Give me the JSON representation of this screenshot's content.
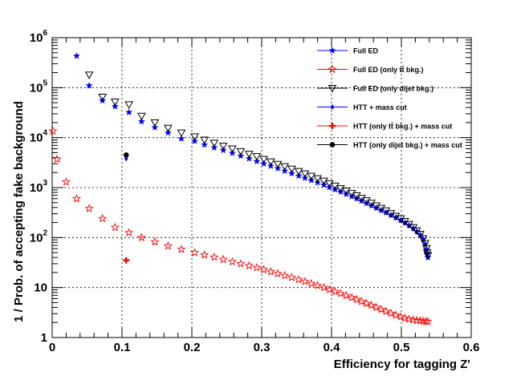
{
  "chart_data": {
    "type": "scatter",
    "xlabel": "Efficiency for tagging Z'",
    "ylabel": "1 / Prob. of accepting fake background",
    "xlim": [
      0,
      0.6
    ],
    "ylim": [
      1,
      1000000
    ],
    "yscale": "log",
    "grid": true,
    "legend_position": "top-right",
    "x_ticks": [
      "0",
      "0.1",
      "0.2",
      "0.3",
      "0.4",
      "0.5",
      "0.6"
    ],
    "y_ticks": [
      {
        "value": 1,
        "base": "1",
        "exp": ""
      },
      {
        "value": 10,
        "base": "10",
        "exp": ""
      },
      {
        "value": 100,
        "base": "10",
        "exp": "2"
      },
      {
        "value": 1000,
        "base": "10",
        "exp": "3"
      },
      {
        "value": 10000,
        "base": "10",
        "exp": "4"
      },
      {
        "value": 100000,
        "base": "10",
        "exp": "5"
      },
      {
        "value": 1000000,
        "base": "10",
        "exp": "6"
      }
    ],
    "series": [
      {
        "name": "Full ED",
        "label_parts": [
          "Full ED"
        ],
        "marker": "star-filled",
        "color": "#0000ff",
        "points": [
          [
            0.035,
            430000
          ],
          [
            0.053,
            110000
          ],
          [
            0.072,
            55000
          ],
          [
            0.09,
            42000
          ],
          [
            0.11,
            32000
          ],
          [
            0.128,
            21000
          ],
          [
            0.147,
            16000
          ],
          [
            0.166,
            12500
          ],
          [
            0.185,
            9500
          ],
          [
            0.204,
            8500
          ],
          [
            0.218,
            7200
          ],
          [
            0.232,
            6300
          ],
          [
            0.245,
            5600
          ],
          [
            0.258,
            4900
          ],
          [
            0.27,
            4300
          ],
          [
            0.282,
            3800
          ],
          [
            0.293,
            3350
          ],
          [
            0.303,
            3000
          ],
          [
            0.313,
            2700
          ],
          [
            0.323,
            2420
          ],
          [
            0.333,
            2150
          ],
          [
            0.343,
            1920
          ],
          [
            0.353,
            1720
          ],
          [
            0.362,
            1550
          ],
          [
            0.371,
            1400
          ],
          [
            0.38,
            1260
          ],
          [
            0.389,
            1130
          ],
          [
            0.397,
            1010
          ],
          [
            0.405,
            910
          ],
          [
            0.413,
            820
          ],
          [
            0.421,
            740
          ],
          [
            0.429,
            665
          ],
          [
            0.436,
            600
          ],
          [
            0.443,
            540
          ],
          [
            0.45,
            485
          ],
          [
            0.457,
            435
          ],
          [
            0.464,
            390
          ],
          [
            0.471,
            350
          ],
          [
            0.478,
            315
          ],
          [
            0.485,
            280
          ],
          [
            0.492,
            250
          ],
          [
            0.499,
            222
          ],
          [
            0.505,
            198
          ],
          [
            0.511,
            175
          ],
          [
            0.517,
            153
          ],
          [
            0.522,
            133
          ],
          [
            0.527,
            113
          ],
          [
            0.531,
            93
          ],
          [
            0.534,
            74
          ],
          [
            0.536,
            58
          ],
          [
            0.537,
            46
          ],
          [
            0.538,
            40
          ]
        ]
      },
      {
        "name": "Full ED (only tt̄ bkg.)",
        "label_parts": [
          "Full ED (only t",
          "t̄",
          " bkg.)"
        ],
        "marker": "star-open",
        "color": "#ff0000",
        "points": [
          [
            0.001,
            13500
          ],
          [
            0.007,
            3700
          ],
          [
            0.02,
            1300
          ],
          [
            0.035,
            600
          ],
          [
            0.053,
            380
          ],
          [
            0.072,
            240
          ],
          [
            0.09,
            160
          ],
          [
            0.11,
            125
          ],
          [
            0.128,
            100
          ],
          [
            0.147,
            82
          ],
          [
            0.166,
            68
          ],
          [
            0.185,
            58
          ],
          [
            0.204,
            50
          ],
          [
            0.218,
            45
          ],
          [
            0.232,
            40.5
          ],
          [
            0.245,
            36.5
          ],
          [
            0.258,
            33
          ],
          [
            0.27,
            30
          ],
          [
            0.282,
            27.3
          ],
          [
            0.293,
            25
          ],
          [
            0.303,
            22.8
          ],
          [
            0.313,
            20.8
          ],
          [
            0.323,
            19
          ],
          [
            0.333,
            17.4
          ],
          [
            0.343,
            15.9
          ],
          [
            0.353,
            14.5
          ],
          [
            0.362,
            13.2
          ],
          [
            0.371,
            12
          ],
          [
            0.38,
            11
          ],
          [
            0.389,
            10
          ],
          [
            0.397,
            9.1
          ],
          [
            0.405,
            8.3
          ],
          [
            0.413,
            7.6
          ],
          [
            0.421,
            6.9
          ],
          [
            0.429,
            6.3
          ],
          [
            0.436,
            5.75
          ],
          [
            0.443,
            5.25
          ],
          [
            0.45,
            4.8
          ],
          [
            0.457,
            4.4
          ],
          [
            0.464,
            4
          ],
          [
            0.471,
            3.65
          ],
          [
            0.478,
            3.33
          ],
          [
            0.485,
            3.05
          ],
          [
            0.492,
            2.8
          ],
          [
            0.499,
            2.6
          ],
          [
            0.505,
            2.45
          ],
          [
            0.511,
            2.33
          ],
          [
            0.517,
            2.25
          ],
          [
            0.522,
            2.2
          ],
          [
            0.527,
            2.16
          ],
          [
            0.531,
            2.13
          ],
          [
            0.535,
            2.1
          ],
          [
            0.538,
            2.08
          ]
        ]
      },
      {
        "name": "Full ED (only dijet bkg.)",
        "label_parts": [
          "Full ED (only dijet bkg.)"
        ],
        "marker": "triangle-down-open",
        "color": "#000000",
        "points": [
          [
            0.053,
            180000
          ],
          [
            0.072,
            65000
          ],
          [
            0.09,
            52000
          ],
          [
            0.11,
            46000
          ],
          [
            0.128,
            27000
          ],
          [
            0.147,
            20000
          ],
          [
            0.166,
            15500
          ],
          [
            0.185,
            12500
          ],
          [
            0.204,
            10500
          ],
          [
            0.218,
            9000
          ],
          [
            0.232,
            7800
          ],
          [
            0.245,
            6800
          ],
          [
            0.258,
            6000
          ],
          [
            0.27,
            5300
          ],
          [
            0.282,
            4700
          ],
          [
            0.293,
            4200
          ],
          [
            0.303,
            3700
          ],
          [
            0.313,
            3300
          ],
          [
            0.323,
            2950
          ],
          [
            0.333,
            2650
          ],
          [
            0.343,
            2370
          ],
          [
            0.353,
            2120
          ],
          [
            0.362,
            1900
          ],
          [
            0.371,
            1700
          ],
          [
            0.38,
            1520
          ],
          [
            0.389,
            1360
          ],
          [
            0.397,
            1210
          ],
          [
            0.405,
            1080
          ],
          [
            0.413,
            960
          ],
          [
            0.421,
            860
          ],
          [
            0.429,
            770
          ],
          [
            0.436,
            690
          ],
          [
            0.443,
            615
          ],
          [
            0.45,
            550
          ],
          [
            0.457,
            490
          ],
          [
            0.464,
            435
          ],
          [
            0.471,
            388
          ],
          [
            0.478,
            345
          ],
          [
            0.485,
            305
          ],
          [
            0.492,
            270
          ],
          [
            0.499,
            240
          ],
          [
            0.505,
            212
          ],
          [
            0.511,
            185
          ],
          [
            0.517,
            160
          ],
          [
            0.522,
            138
          ],
          [
            0.527,
            117
          ],
          [
            0.531,
            96
          ],
          [
            0.534,
            77
          ],
          [
            0.536,
            61
          ],
          [
            0.537,
            50
          ],
          [
            0.538,
            44
          ]
        ]
      },
      {
        "name": "HTT + mass cut",
        "label_parts": [
          "HTT + mass cut"
        ],
        "marker": "diamond-filled",
        "color": "#0000ff",
        "points": [
          [
            0.106,
            3800
          ]
        ]
      },
      {
        "name": "HTT (only tt̄ bkg.) + mass cut",
        "label_parts": [
          "HTT (only t",
          "t̄",
          " bkg.) + mass cut"
        ],
        "marker": "cross-filled",
        "color": "#ff0000",
        "points": [
          [
            0.106,
            35
          ]
        ]
      },
      {
        "name": "HTT (only dijet bkg.) + mass cut",
        "label_parts": [
          "HTT (only dijet bkg.) + mass cut"
        ],
        "marker": "circle-filled",
        "color": "#000000",
        "points": [
          [
            0.106,
            4500
          ]
        ]
      }
    ]
  }
}
